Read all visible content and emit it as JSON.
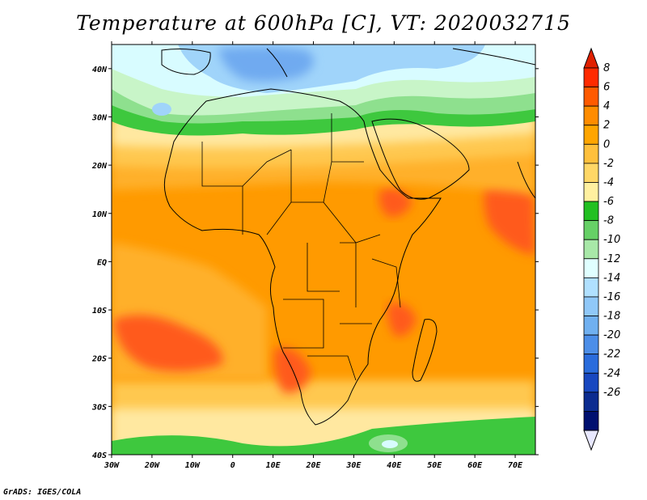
{
  "title": "Temperature at 600hPa [C], VT: 2020032715",
  "footer": "GrADS: IGES/COLA",
  "map": {
    "lon_range": [
      -30,
      75
    ],
    "lat_range": [
      -40,
      45
    ],
    "x_ticks": [
      {
        "lon": -30,
        "label": "30W"
      },
      {
        "lon": -20,
        "label": "20W"
      },
      {
        "lon": -10,
        "label": "10W"
      },
      {
        "lon": 0,
        "label": "0"
      },
      {
        "lon": 10,
        "label": "10E"
      },
      {
        "lon": 20,
        "label": "20E"
      },
      {
        "lon": 30,
        "label": "30E"
      },
      {
        "lon": 40,
        "label": "40E"
      },
      {
        "lon": 50,
        "label": "50E"
      },
      {
        "lon": 60,
        "label": "60E"
      },
      {
        "lon": 70,
        "label": "70E"
      }
    ],
    "y_ticks": [
      {
        "lat": 40,
        "label": "40N"
      },
      {
        "lat": 30,
        "label": "30N"
      },
      {
        "lat": 20,
        "label": "20N"
      },
      {
        "lat": 10,
        "label": "10N"
      },
      {
        "lat": 0,
        "label": "EQ"
      },
      {
        "lat": -10,
        "label": "10S"
      },
      {
        "lat": -20,
        "label": "20S"
      },
      {
        "lat": -30,
        "label": "30S"
      },
      {
        "lat": -40,
        "label": "40S"
      }
    ]
  },
  "colorbar": {
    "levels": [
      "8",
      "6",
      "4",
      "2",
      "0",
      "-2",
      "-4",
      "-6",
      "-8",
      "-10",
      "-12",
      "-14",
      "-16",
      "-18",
      "-20",
      "-22",
      "-24",
      "-26"
    ],
    "colors": [
      "#ff2a00",
      "#ff5a00",
      "#ff8c00",
      "#ffa500",
      "#ffc03c",
      "#ffd766",
      "#fff0a0",
      "#22c022",
      "#66d066",
      "#a8e8a8",
      "#e0ffff",
      "#b0e0ff",
      "#90c8f8",
      "#70b0f0",
      "#4c8ee8",
      "#2a6cdc",
      "#1848c0",
      "#0c2c90",
      "#001070"
    ],
    "over_color": "#e02000",
    "under_color": "#e8e8ff"
  },
  "field_colors": {
    "hot": "#ff5a1e",
    "warm": "#ff9a00",
    "mild": "#ffb02a",
    "light_orange": "#ffc850",
    "pale_yellow": "#ffe8a0",
    "green": "#3ec83e",
    "light_green": "#8ee08e",
    "pale_green": "#c8f5c8",
    "cyan": "#d8fcff",
    "light_blue": "#a0d4fa",
    "blue": "#70aaf0"
  }
}
